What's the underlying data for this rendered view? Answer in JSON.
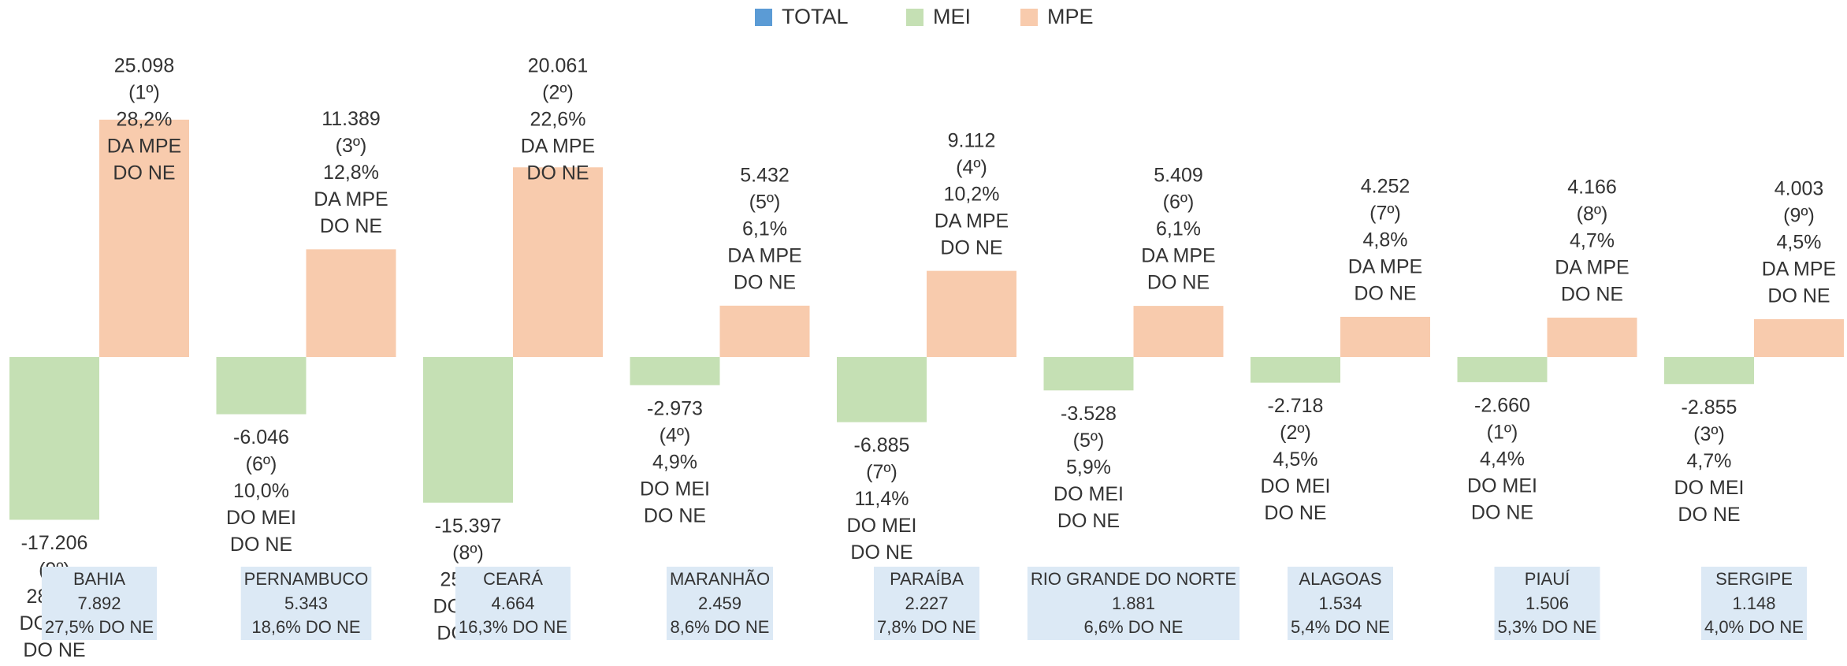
{
  "chart_data": {
    "type": "bar",
    "categories": [
      "BAHIA",
      "PERNAMBUCO",
      "CEARÁ",
      "MARANHÃO",
      "PARAÍBA",
      "RIO GRANDE DO NORTE",
      "ALAGOAS",
      "PIAUÍ",
      "SERGIPE"
    ],
    "ylim": [
      -20000,
      30000
    ],
    "series": [
      {
        "name": "TOTAL",
        "color": "#5b9bd5",
        "box_color": "#dce9f5",
        "values": [
          7892,
          5343,
          4664,
          2459,
          2227,
          1881,
          1534,
          1506,
          1148
        ],
        "value_labels": [
          "7.892",
          "5.343",
          "4.664",
          "2.459",
          "2.227",
          "1.881",
          "1.534",
          "1.506",
          "1.148"
        ],
        "shares": [
          "27,5%",
          "18,6%",
          "16,3%",
          "8,6%",
          "7,8%",
          "6,6%",
          "5,4%",
          "5,3%",
          "4,0%"
        ],
        "share_of": [
          "DO NE"
        ]
      },
      {
        "name": "MEI",
        "color": "#c5e0b4",
        "values": [
          -17206,
          -6046,
          -15397,
          -2973,
          -6885,
          -3528,
          -2718,
          -2660,
          -2855
        ],
        "value_labels": [
          "-17.206",
          "-6.046",
          "-15.397",
          "-2.973",
          "-6.885",
          "-3.528",
          "-2.718",
          "-2.660",
          "-2.855"
        ],
        "ranks": [
          "(9º)",
          "(6º)",
          "(8º)",
          "(4º)",
          "(7º)",
          "(5º)",
          "(2º)",
          "(1º)",
          "(3º)"
        ],
        "shares": [
          "28,5%",
          "10,0%",
          "25,5%",
          "4,9%",
          "11,4%",
          "5,9%",
          "4,5%",
          "4,4%",
          "4,7%"
        ],
        "share_of": [
          "DO MEI",
          "DO NE"
        ]
      },
      {
        "name": "MPE",
        "color": "#f8cbad",
        "values": [
          25098,
          11389,
          20061,
          5432,
          9112,
          5409,
          4252,
          4166,
          4003
        ],
        "value_labels": [
          "25.098",
          "11.389",
          "20.061",
          "5.432",
          "9.112",
          "5.409",
          "4.252",
          "4.166",
          "4.003"
        ],
        "ranks": [
          "(1º)",
          "(3º)",
          "(2º)",
          "(5º)",
          "(4º)",
          "(6º)",
          "(7º)",
          "(8º)",
          "(9º)"
        ],
        "shares": [
          "28,2%",
          "12,8%",
          "22,6%",
          "6,1%",
          "10,2%",
          "6,1%",
          "4,8%",
          "4,7%",
          "4,5%"
        ],
        "share_of": [
          "DA MPE",
          "DO NE"
        ]
      }
    ]
  }
}
